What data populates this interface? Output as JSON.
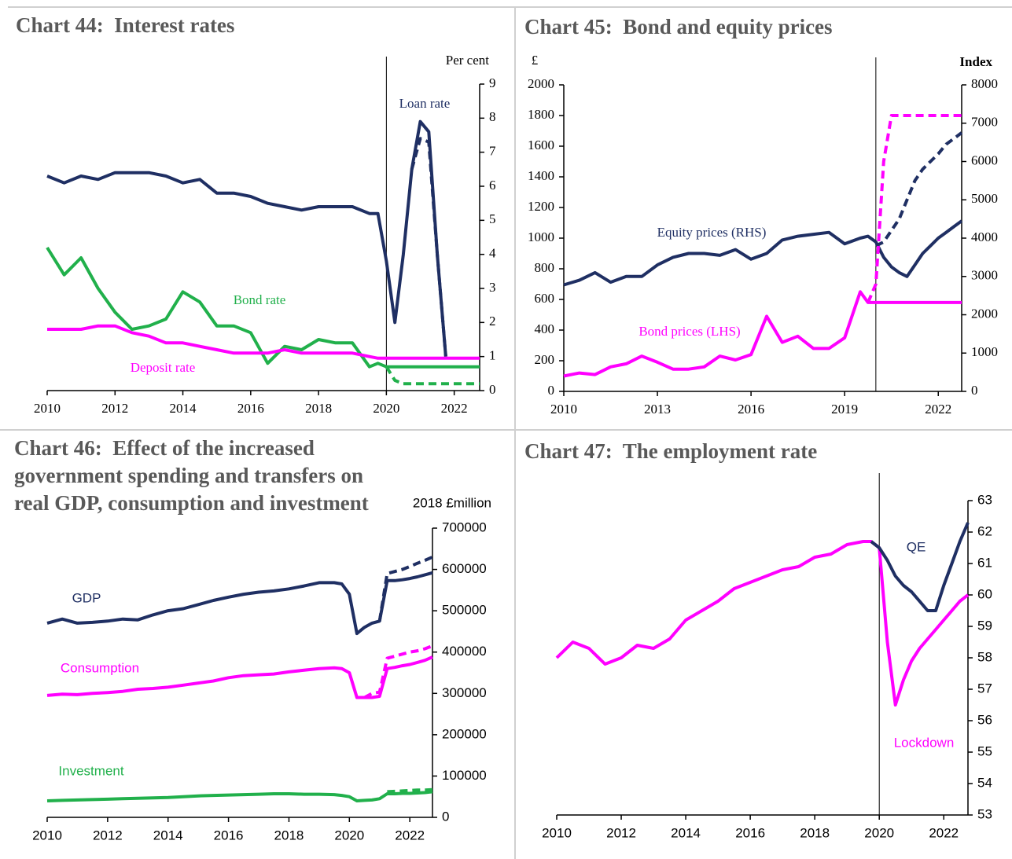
{
  "chart_data": [
    {
      "type": "line",
      "title": "Chart 44:  Interest rates",
      "y_axis_title": "Per cent",
      "x": [
        2010,
        2010.5,
        2011,
        2011.5,
        2012,
        2012.5,
        2013,
        2013.5,
        2014,
        2014.5,
        2015,
        2015.5,
        2016,
        2016.5,
        2017,
        2017.5,
        2018,
        2018.5,
        2019,
        2019.5,
        2019.75,
        2020,
        2020.25,
        2020.5,
        2020.75,
        2021,
        2021.25,
        2021.5,
        2021.75,
        2022,
        2022.25,
        2022.5,
        2022.75
      ],
      "xlim": [
        2010,
        2022.75
      ],
      "xticks": [
        2010,
        2012,
        2014,
        2016,
        2018,
        2020,
        2022
      ],
      "ylim": [
        0,
        9
      ],
      "yticks": [
        0,
        1,
        2,
        3,
        4,
        5,
        6,
        7,
        8,
        9
      ],
      "y_axis_side": "right",
      "vline": 2020,
      "series": [
        {
          "name": "Loan rate",
          "color": "#1f2f63",
          "values": [
            6.3,
            6.1,
            6.3,
            6.2,
            6.4,
            6.4,
            6.4,
            6.3,
            6.1,
            6.2,
            5.8,
            5.8,
            5.7,
            5.5,
            5.4,
            5.3,
            5.4,
            5.4,
            5.4,
            5.2,
            5.2,
            3.8,
            2.0,
            4.0,
            6.5,
            7.9,
            7.6,
            4.0,
            1.0,
            null,
            null,
            null,
            null
          ]
        },
        {
          "color": "#1f2f63",
          "dashed": true,
          "values": [
            null,
            null,
            null,
            null,
            null,
            null,
            null,
            null,
            null,
            null,
            null,
            null,
            null,
            null,
            null,
            null,
            null,
            null,
            null,
            null,
            null,
            null,
            null,
            null,
            6.5,
            7.4,
            7.3,
            4.0,
            1.0,
            null,
            null,
            null,
            null
          ]
        },
        {
          "name": "Bond rate",
          "color": "#21b04b",
          "values": [
            4.2,
            3.4,
            3.9,
            3.0,
            2.3,
            1.8,
            1.9,
            2.1,
            2.9,
            2.6,
            1.9,
            1.9,
            1.7,
            0.8,
            1.3,
            1.2,
            1.5,
            1.4,
            1.4,
            0.7,
            0.8,
            0.7,
            0.7,
            0.7,
            0.7,
            0.7,
            0.7,
            0.7,
            0.7,
            0.7,
            0.7,
            0.7,
            0.7
          ]
        },
        {
          "color": "#21b04b",
          "dashed": true,
          "values": [
            null,
            null,
            null,
            null,
            null,
            null,
            null,
            null,
            null,
            null,
            null,
            null,
            null,
            null,
            null,
            null,
            null,
            null,
            null,
            null,
            null,
            0.7,
            0.3,
            0.2,
            0.2,
            0.2,
            0.2,
            0.2,
            0.2,
            0.2,
            0.2,
            0.2,
            0.2
          ]
        },
        {
          "name": "Deposit rate",
          "color": "#ff00ff",
          "values": [
            1.8,
            1.8,
            1.8,
            1.9,
            1.9,
            1.7,
            1.6,
            1.4,
            1.4,
            1.3,
            1.2,
            1.1,
            1.1,
            1.1,
            1.2,
            1.1,
            1.1,
            1.1,
            1.1,
            1.0,
            0.95,
            0.95,
            0.95,
            0.95,
            0.95,
            0.95,
            0.95,
            0.95,
            0.95,
            0.95,
            0.95,
            0.95,
            0.95
          ]
        }
      ]
    },
    {
      "type": "line",
      "title": "Chart 45:  Bond and equity prices",
      "y_axis_title": "£",
      "y2_axis_title": "Index",
      "x": [
        2010,
        2010.5,
        2011,
        2011.5,
        2012,
        2012.5,
        2013,
        2013.5,
        2014,
        2014.5,
        2015,
        2015.5,
        2016,
        2016.5,
        2017,
        2017.5,
        2018,
        2018.5,
        2019,
        2019.5,
        2019.75,
        2020,
        2020.25,
        2020.5,
        2020.75,
        2021,
        2021.25,
        2021.5,
        2021.75,
        2022,
        2022.25,
        2022.5,
        2022.75
      ],
      "xlim": [
        2010,
        2022.75
      ],
      "xticks": [
        2010,
        2013,
        2016,
        2019,
        2022
      ],
      "ylim": [
        0,
        2000
      ],
      "yticks": [
        0,
        200,
        400,
        600,
        800,
        1000,
        1200,
        1400,
        1600,
        1800,
        2000
      ],
      "y_axis_side": "left",
      "y2lim": [
        0,
        8000
      ],
      "y2ticks": [
        0,
        1000,
        2000,
        3000,
        4000,
        5000,
        6000,
        7000,
        8000
      ],
      "vline": 2020,
      "series": [
        {
          "name": "Equity prices (RHS)",
          "color": "#1f2f63",
          "axis": "y2",
          "values": [
            2780,
            2900,
            3100,
            2850,
            3000,
            3000,
            3300,
            3500,
            3600,
            3600,
            3550,
            3700,
            3450,
            3600,
            3950,
            4050,
            4100,
            4150,
            3850,
            4000,
            4050,
            3900,
            3500,
            3250,
            3100,
            3000,
            3300,
            3600,
            3800,
            4000,
            4150,
            4300,
            4450
          ]
        },
        {
          "color": "#1f2f63",
          "axis": "y2",
          "dashed": true,
          "values": [
            null,
            null,
            null,
            null,
            null,
            null,
            null,
            null,
            null,
            null,
            null,
            null,
            null,
            null,
            null,
            null,
            null,
            null,
            null,
            null,
            null,
            3800,
            3900,
            4200,
            4500,
            5000,
            5500,
            5800,
            6000,
            6200,
            6450,
            6600,
            6750
          ]
        },
        {
          "name": "Bond prices (LHS)",
          "color": "#ff00ff",
          "values": [
            100,
            120,
            110,
            160,
            180,
            230,
            190,
            145,
            145,
            160,
            230,
            205,
            240,
            490,
            320,
            360,
            280,
            280,
            350,
            650,
            580,
            580,
            580,
            580,
            580,
            580,
            580,
            580,
            580,
            580,
            580,
            580,
            580
          ]
        },
        {
          "color": "#ff00ff",
          "dashed": true,
          "values": [
            null,
            null,
            null,
            null,
            null,
            null,
            null,
            null,
            null,
            null,
            null,
            null,
            null,
            null,
            null,
            null,
            null,
            null,
            null,
            null,
            580,
            700,
            1500,
            1800,
            1800,
            1800,
            1800,
            1800,
            1800,
            1800,
            1800,
            1800,
            1800
          ]
        }
      ]
    },
    {
      "type": "line",
      "title": "Chart 46:  Effect of the increased government spending and transfers on real GDP, consumption and investment",
      "y_axis_title": "2018 £million",
      "x": [
        2010,
        2010.5,
        2011,
        2011.5,
        2012,
        2012.5,
        2013,
        2013.5,
        2014,
        2014.5,
        2015,
        2015.5,
        2016,
        2016.5,
        2017,
        2017.5,
        2018,
        2018.5,
        2019,
        2019.5,
        2019.75,
        2020,
        2020.25,
        2020.5,
        2020.75,
        2021,
        2021.25,
        2021.5,
        2021.75,
        2022,
        2022.25,
        2022.5,
        2022.75
      ],
      "xlim": [
        2010,
        2022.75
      ],
      "xticks": [
        2010,
        2012,
        2014,
        2016,
        2018,
        2020,
        2022
      ],
      "ylim": [
        0,
        700000
      ],
      "yticks": [
        0,
        100000,
        200000,
        300000,
        400000,
        500000,
        600000,
        700000
      ],
      "y_axis_side": "right",
      "series": [
        {
          "name": "GDP",
          "color": "#1f2f63",
          "values": [
            470000,
            480000,
            470000,
            472000,
            475000,
            480000,
            478000,
            490000,
            500000,
            505000,
            515000,
            525000,
            533000,
            540000,
            545000,
            548000,
            553000,
            560000,
            568000,
            568000,
            565000,
            540000,
            445000,
            460000,
            470000,
            475000,
            573000,
            573000,
            575000,
            578000,
            582000,
            587000,
            592000
          ]
        },
        {
          "color": "#1f2f63",
          "dashed": true,
          "values": [
            null,
            null,
            null,
            null,
            null,
            null,
            null,
            null,
            null,
            null,
            null,
            null,
            null,
            null,
            null,
            null,
            null,
            null,
            null,
            null,
            null,
            null,
            null,
            null,
            null,
            475000,
            590000,
            595000,
            600000,
            607000,
            615000,
            622000,
            630000
          ]
        },
        {
          "name": "Consumption",
          "color": "#ff00ff",
          "values": [
            295000,
            298000,
            297000,
            300000,
            302000,
            305000,
            310000,
            312000,
            315000,
            320000,
            325000,
            330000,
            338000,
            343000,
            345000,
            347000,
            352000,
            356000,
            360000,
            362000,
            360000,
            350000,
            290000,
            290000,
            290000,
            293000,
            360000,
            363000,
            367000,
            370000,
            375000,
            380000,
            388000
          ]
        },
        {
          "color": "#ff00ff",
          "dashed": true,
          "values": [
            null,
            null,
            null,
            null,
            null,
            null,
            null,
            null,
            null,
            null,
            null,
            null,
            null,
            null,
            null,
            null,
            null,
            null,
            null,
            null,
            null,
            null,
            null,
            290000,
            300000,
            303000,
            385000,
            390000,
            395000,
            400000,
            403000,
            408000,
            415000
          ]
        },
        {
          "name": "Investment",
          "color": "#21b04b",
          "values": [
            40000,
            41000,
            42000,
            43000,
            44000,
            45000,
            46000,
            47000,
            48000,
            50000,
            52000,
            53000,
            54000,
            55000,
            56000,
            57000,
            57000,
            56000,
            56000,
            55000,
            53000,
            50000,
            40000,
            41000,
            42000,
            45000,
            57000,
            57000,
            58000,
            58000,
            59000,
            60000,
            62000
          ]
        },
        {
          "color": "#21b04b",
          "dashed": true,
          "values": [
            null,
            null,
            null,
            null,
            null,
            null,
            null,
            null,
            null,
            null,
            null,
            null,
            null,
            null,
            null,
            null,
            null,
            null,
            null,
            null,
            null,
            null,
            null,
            null,
            null,
            null,
            62000,
            63000,
            64000,
            65000,
            66000,
            66000,
            67000
          ]
        }
      ]
    },
    {
      "type": "line",
      "title": "Chart 47:  The employment rate",
      "x": [
        2010,
        2010.5,
        2011,
        2011.5,
        2012,
        2012.5,
        2013,
        2013.5,
        2014,
        2014.5,
        2015,
        2015.5,
        2016,
        2016.5,
        2017,
        2017.5,
        2018,
        2018.5,
        2019,
        2019.5,
        2019.75,
        2020,
        2020.25,
        2020.5,
        2020.75,
        2021,
        2021.25,
        2021.5,
        2021.75,
        2022,
        2022.25,
        2022.5,
        2022.75
      ],
      "xlim": [
        2010,
        2022.75
      ],
      "xticks": [
        2010,
        2012,
        2014,
        2016,
        2018,
        2020,
        2022
      ],
      "ylim": [
        53,
        63
      ],
      "yticks": [
        53,
        54,
        55,
        56,
        57,
        58,
        59,
        60,
        61,
        62,
        63
      ],
      "y_axis_side": "right",
      "vline": 2020,
      "series": [
        {
          "name": "Lockdown",
          "color": "#ff00ff",
          "values": [
            58.0,
            58.5,
            58.3,
            57.8,
            58.0,
            58.4,
            58.3,
            58.6,
            59.2,
            59.5,
            59.8,
            60.2,
            60.4,
            60.6,
            60.8,
            60.9,
            61.2,
            61.3,
            61.6,
            61.7,
            61.7,
            61.5,
            58.5,
            56.5,
            57.3,
            57.9,
            58.3,
            58.6,
            58.9,
            59.2,
            59.5,
            59.8,
            60.0
          ]
        },
        {
          "name": "QE",
          "color": "#1f2f63",
          "values": [
            null,
            null,
            null,
            null,
            null,
            null,
            null,
            null,
            null,
            null,
            null,
            null,
            null,
            null,
            null,
            null,
            null,
            null,
            null,
            null,
            61.7,
            61.5,
            61.1,
            60.6,
            60.3,
            60.1,
            59.8,
            59.5,
            59.5,
            60.3,
            61.0,
            61.7,
            62.3
          ]
        }
      ]
    }
  ]
}
